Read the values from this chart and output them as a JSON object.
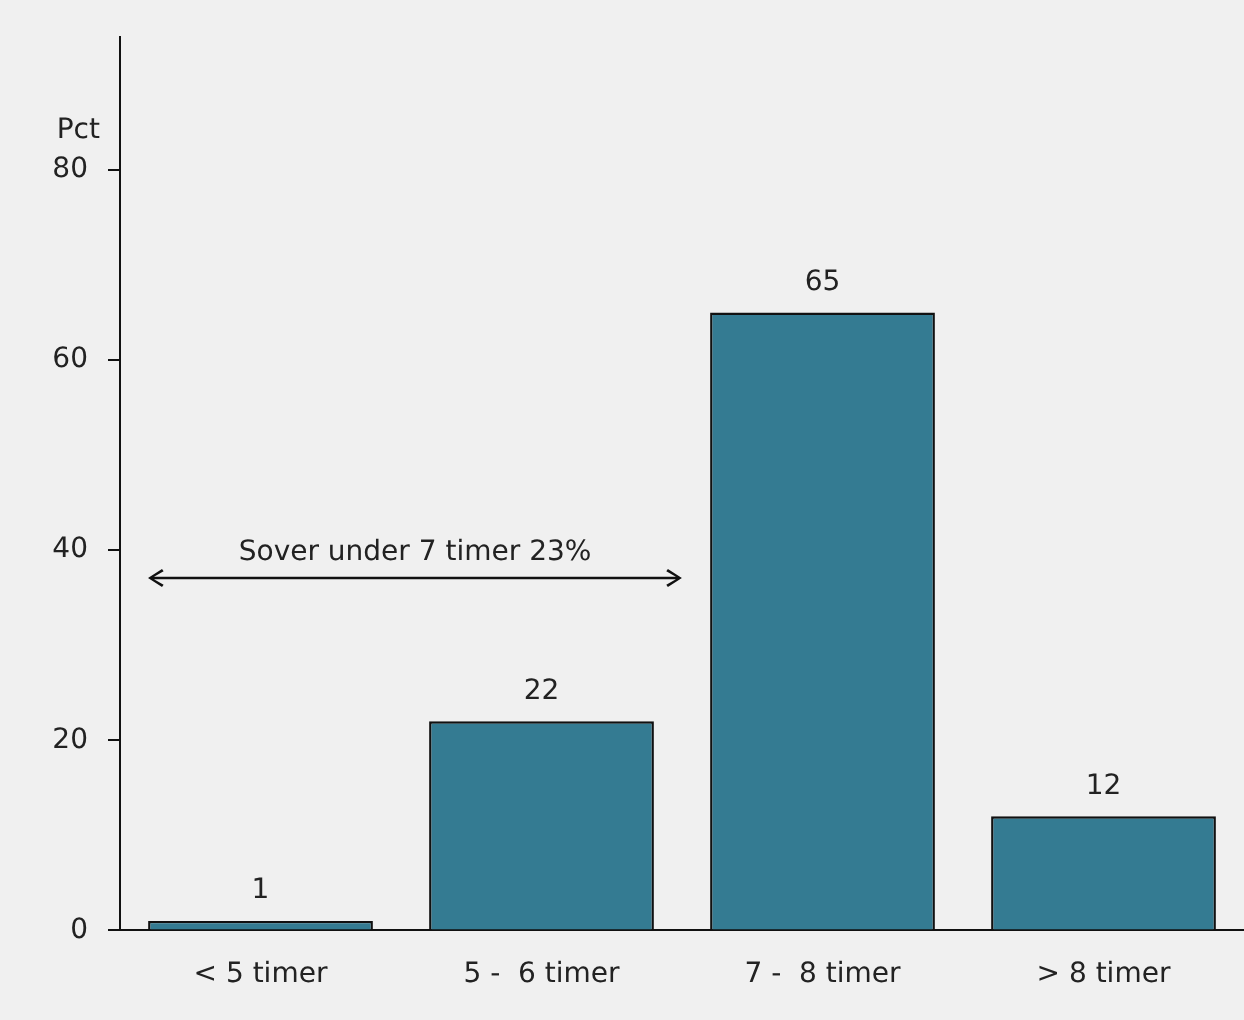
{
  "chart_data": {
    "type": "bar",
    "ylabel": "Pct",
    "categories": [
      "< 5 timer",
      "5 -  6 timer",
      "7 -  8 timer",
      "> 8 timer"
    ],
    "values": [
      1,
      22,
      65,
      12
    ],
    "color": "#347b92",
    "ylim": [
      0,
      94
    ],
    "yticks": [
      0,
      20,
      40,
      60,
      80
    ],
    "grid": false,
    "legend": false,
    "data_labels": true,
    "annotations": [
      "Sover under 7 timer 23%"
    ]
  }
}
